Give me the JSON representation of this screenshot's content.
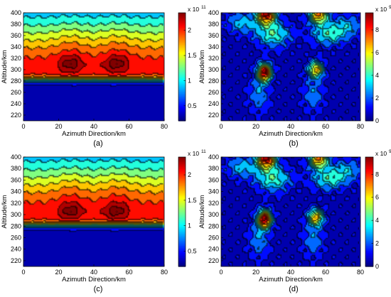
{
  "figure": {
    "panel_captions": [
      "(a)",
      "(b)",
      "(c)",
      "(d)"
    ]
  },
  "colormap": "jet",
  "chart_data": [
    {
      "type": "heatmap",
      "caption": "(a)",
      "title": "",
      "xlabel": "Azimuth Direction/km",
      "ylabel": "Altitude/km",
      "xlim": [
        0,
        80
      ],
      "ylim": [
        210,
        400
      ],
      "xticks": [
        0,
        20,
        40,
        60,
        80
      ],
      "yticks": [
        220,
        240,
        260,
        280,
        300,
        320,
        340,
        360,
        380,
        400
      ],
      "colorbar": {
        "multiplier": "x 10",
        "exponent": "11",
        "ticks": [
          "0.5",
          "1",
          "1.5",
          "2"
        ],
        "tick_values": [
          0.5,
          1,
          1.5,
          2
        ],
        "range": [
          0.2,
          2.35
        ]
      },
      "contour_lines": true,
      "peaks": [
        {
          "x": 27,
          "y": 310,
          "value": 2.3
        },
        {
          "x": 53,
          "y": 310,
          "value": 2.3
        }
      ]
    },
    {
      "type": "heatmap",
      "caption": "(b)",
      "title": "",
      "xlabel": "Azimuth Direction/km",
      "ylabel": "Altitude/km",
      "xlim": [
        0,
        80
      ],
      "ylim": [
        210,
        400
      ],
      "xticks": [
        0,
        20,
        40,
        60,
        80
      ],
      "yticks": [
        220,
        240,
        260,
        280,
        300,
        320,
        340,
        360,
        380,
        400
      ],
      "colorbar": {
        "multiplier": "x 10",
        "exponent": "9",
        "ticks": [
          "0",
          "2",
          "4",
          "6",
          "8"
        ],
        "tick_values": [
          0,
          2,
          4,
          6,
          8
        ],
        "range": [
          0,
          9.5
        ]
      },
      "contour_lines": true,
      "peaks": [
        {
          "x": 25,
          "y": 295,
          "value": 9.5
        },
        {
          "x": 55,
          "y": 300,
          "value": 6.5
        },
        {
          "x": 26,
          "y": 392,
          "value": 9.5
        },
        {
          "x": 56,
          "y": 392,
          "value": 7
        }
      ]
    },
    {
      "type": "heatmap",
      "caption": "(c)",
      "title": "",
      "xlabel": "Azimuth Direction/km",
      "ylabel": "Altitude/km",
      "xlim": [
        0,
        80
      ],
      "ylim": [
        210,
        400
      ],
      "xticks": [
        0,
        20,
        40,
        60,
        80
      ],
      "yticks": [
        220,
        240,
        260,
        280,
        300,
        320,
        340,
        360,
        380,
        400
      ],
      "colorbar": {
        "multiplier": "x 10",
        "exponent": "11",
        "ticks": [
          "0.5",
          "1",
          "1.5",
          "2"
        ],
        "tick_values": [
          0.5,
          1,
          1.5,
          2
        ],
        "range": [
          0.2,
          2.35
        ]
      },
      "contour_lines": true,
      "peaks": [
        {
          "x": 27,
          "y": 305,
          "value": 2.3
        },
        {
          "x": 53,
          "y": 305,
          "value": 2.3
        }
      ]
    },
    {
      "type": "heatmap",
      "caption": "(d)",
      "title": "",
      "xlabel": "Azimuth Direction/km",
      "ylabel": "Altitude/km",
      "xlim": [
        0,
        80
      ],
      "ylim": [
        210,
        400
      ],
      "xticks": [
        0,
        20,
        40,
        60,
        80
      ],
      "yticks": [
        220,
        240,
        260,
        280,
        300,
        320,
        340,
        360,
        380,
        400
      ],
      "colorbar": {
        "multiplier": "x 10",
        "exponent": "9",
        "ticks": [
          "0",
          "2",
          "4",
          "6",
          "8"
        ],
        "tick_values": [
          0,
          2,
          4,
          6,
          8
        ],
        "range": [
          0,
          9.5
        ]
      },
      "contour_lines": true,
      "peaks": [
        {
          "x": 25,
          "y": 292,
          "value": 9.5
        },
        {
          "x": 54,
          "y": 295,
          "value": 6.5
        },
        {
          "x": 26,
          "y": 392,
          "value": 9.5
        },
        {
          "x": 56,
          "y": 392,
          "value": 7
        }
      ]
    }
  ]
}
